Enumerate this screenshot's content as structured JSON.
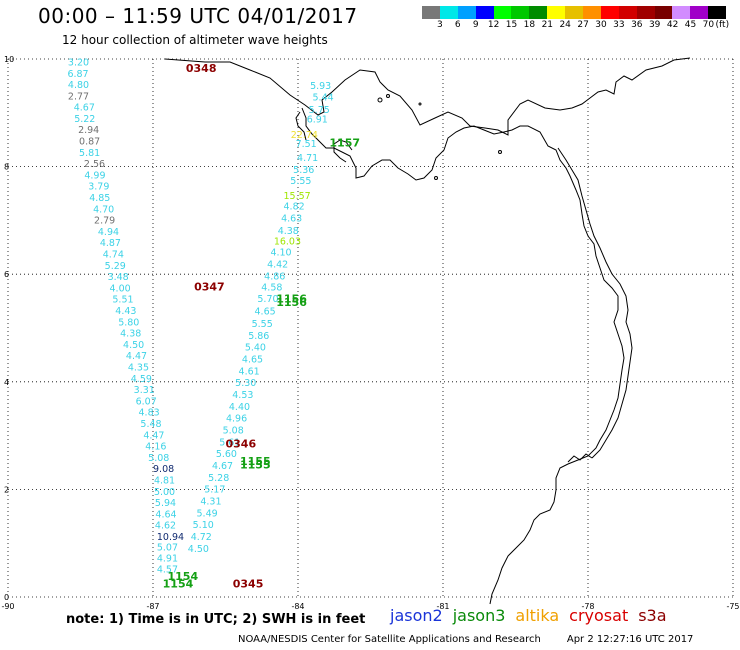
{
  "header": {
    "title": "00:00 – 11:59 UTC 04/01/2017",
    "subtitle": "12 hour collection of altimeter wave heights"
  },
  "legend": {
    "unit": "(ft)",
    "bins": [
      {
        "label": "3",
        "color": "#787878"
      },
      {
        "label": "6",
        "color": "#00e8e8"
      },
      {
        "label": "9",
        "color": "#00a0ff"
      },
      {
        "label": "12",
        "color": "#0000ff"
      },
      {
        "label": "15",
        "color": "#00ff00"
      },
      {
        "label": "18",
        "color": "#00c800"
      },
      {
        "label": "21",
        "color": "#008c00"
      },
      {
        "label": "24",
        "color": "#ffff00"
      },
      {
        "label": "27",
        "color": "#e6c000"
      },
      {
        "label": "30",
        "color": "#ff9000"
      },
      {
        "label": "33",
        "color": "#ff0000"
      },
      {
        "label": "36",
        "color": "#d20000"
      },
      {
        "label": "39",
        "color": "#a00000"
      },
      {
        "label": "42",
        "color": "#780000"
      },
      {
        "label": "45",
        "color": "#d28cff"
      },
      {
        "label": "70",
        "color": "#a000c8"
      },
      {
        "label": "",
        "color": "#000000"
      }
    ]
  },
  "axes": {
    "x_ticks": [
      -90,
      -87,
      -84,
      -81,
      -78,
      -75
    ],
    "y_ticks": [
      0,
      2,
      4,
      6,
      8,
      10
    ],
    "xlim": [
      -90,
      -75
    ],
    "ylim": [
      0,
      10
    ],
    "grid": true,
    "grid_style": "dotted"
  },
  "colors": {
    "cyan": "#3cd2e6",
    "gray": "#707070",
    "green": "#14a014",
    "lightgreen": "#9ee600",
    "darkred": "#8c0000",
    "navy": "#102a70",
    "yellow": "#f0e030",
    "land": "#000000"
  },
  "track_a": {
    "points": [
      {
        "lon": -88.76,
        "lat": 9.88,
        "swh": "3.20",
        "c": "cyan"
      },
      {
        "lon": -88.77,
        "lat": 9.67,
        "swh": "6.87",
        "c": "cyan"
      },
      {
        "lon": -88.76,
        "lat": 9.46,
        "swh": "4.80",
        "c": "cyan"
      },
      {
        "lon": -88.76,
        "lat": 9.25,
        "swh": "2.77",
        "c": "gray"
      },
      {
        "lon": -88.64,
        "lat": 9.04,
        "swh": "4.67",
        "c": "cyan"
      },
      {
        "lon": -88.63,
        "lat": 8.83,
        "swh": "5.22",
        "c": "cyan"
      },
      {
        "lon": -88.55,
        "lat": 8.62,
        "swh": "2.94",
        "c": "gray"
      },
      {
        "lon": -88.53,
        "lat": 8.41,
        "swh": "0.87",
        "c": "gray"
      },
      {
        "lon": -88.53,
        "lat": 8.2,
        "swh": "5.81",
        "c": "cyan"
      },
      {
        "lon": -88.43,
        "lat": 7.99,
        "swh": "2.56",
        "c": "gray"
      },
      {
        "lon": -88.42,
        "lat": 7.78,
        "swh": "4.99",
        "c": "cyan"
      },
      {
        "lon": -88.34,
        "lat": 7.57,
        "swh": "3.79",
        "c": "cyan"
      },
      {
        "lon": -88.32,
        "lat": 7.36,
        "swh": "4.85",
        "c": "cyan"
      },
      {
        "lon": -88.24,
        "lat": 7.15,
        "swh": "4.70",
        "c": "cyan"
      },
      {
        "lon": -88.22,
        "lat": 6.94,
        "swh": "2.79",
        "c": "gray"
      },
      {
        "lon": -88.14,
        "lat": 6.73,
        "swh": "4.94",
        "c": "cyan"
      },
      {
        "lon": -88.1,
        "lat": 6.52,
        "swh": "4.87",
        "c": "cyan"
      },
      {
        "lon": -88.04,
        "lat": 6.31,
        "swh": "4.74",
        "c": "cyan"
      },
      {
        "lon": -88.0,
        "lat": 6.1,
        "swh": "5.29",
        "c": "cyan"
      },
      {
        "lon": -87.94,
        "lat": 5.89,
        "swh": "3.48",
        "c": "cyan"
      },
      {
        "lon": -87.9,
        "lat": 5.68,
        "swh": "4.00",
        "c": "cyan"
      },
      {
        "lon": -87.84,
        "lat": 5.47,
        "swh": "5.51",
        "c": "cyan"
      },
      {
        "lon": -87.78,
        "lat": 5.26,
        "swh": "4.43",
        "c": "cyan"
      },
      {
        "lon": -87.72,
        "lat": 5.05,
        "swh": "5.80",
        "c": "cyan"
      },
      {
        "lon": -87.68,
        "lat": 4.84,
        "swh": "4.38",
        "c": "cyan"
      },
      {
        "lon": -87.62,
        "lat": 4.63,
        "swh": "4.50",
        "c": "cyan"
      },
      {
        "lon": -87.56,
        "lat": 4.42,
        "swh": "4.47",
        "c": "cyan"
      },
      {
        "lon": -87.52,
        "lat": 4.21,
        "swh": "4.35",
        "c": "cyan"
      },
      {
        "lon": -87.46,
        "lat": 4.0,
        "swh": "4.59",
        "c": "cyan"
      },
      {
        "lon": -87.4,
        "lat": 3.79,
        "swh": "3.31",
        "c": "cyan"
      },
      {
        "lon": -87.36,
        "lat": 3.58,
        "swh": "6.07",
        "c": "cyan"
      },
      {
        "lon": -87.3,
        "lat": 3.37,
        "swh": "4.83",
        "c": "cyan"
      },
      {
        "lon": -87.26,
        "lat": 3.16,
        "swh": "5.48",
        "c": "cyan"
      },
      {
        "lon": -87.2,
        "lat": 2.95,
        "swh": "4.47",
        "c": "cyan"
      },
      {
        "lon": -87.16,
        "lat": 2.74,
        "swh": "4.16",
        "c": "cyan"
      },
      {
        "lon": -87.1,
        "lat": 2.53,
        "swh": "5.08",
        "c": "cyan"
      },
      {
        "lon": -87.0,
        "lat": 2.32,
        "swh": "9.08",
        "c": "navy"
      },
      {
        "lon": -86.98,
        "lat": 2.11,
        "swh": "4.81",
        "c": "cyan"
      },
      {
        "lon": -86.98,
        "lat": 1.9,
        "swh": "5.00",
        "c": "cyan"
      },
      {
        "lon": -86.96,
        "lat": 1.69,
        "swh": "5.94",
        "c": "cyan"
      },
      {
        "lon": -86.95,
        "lat": 1.48,
        "swh": "4.64",
        "c": "cyan"
      },
      {
        "lon": -86.96,
        "lat": 1.27,
        "swh": "4.62",
        "c": "cyan"
      },
      {
        "lon": -86.92,
        "lat": 1.06,
        "swh": "10.94",
        "c": "navy"
      },
      {
        "lon": -86.92,
        "lat": 0.86,
        "swh": "5.07",
        "c": "cyan"
      },
      {
        "lon": -86.92,
        "lat": 0.66,
        "swh": "4.91",
        "c": "cyan"
      },
      {
        "lon": -86.92,
        "lat": 0.46,
        "swh": "4.57",
        "c": "cyan"
      }
    ]
  },
  "track_b": {
    "points": [
      {
        "lon": -83.75,
        "lat": 9.44,
        "swh": "5.93",
        "c": "cyan"
      },
      {
        "lon": -83.7,
        "lat": 9.23,
        "swh": "5.44",
        "c": "cyan"
      },
      {
        "lon": -83.78,
        "lat": 9.0,
        "swh": "5.75",
        "c": "cyan"
      },
      {
        "lon": -83.82,
        "lat": 8.82,
        "swh": "6.91",
        "c": "cyan"
      },
      {
        "lon": -84.15,
        "lat": 8.53,
        "swh": "22.74",
        "c": "yellow"
      },
      {
        "lon": -84.05,
        "lat": 8.36,
        "swh": "7.51",
        "c": "cyan"
      },
      {
        "lon": -84.02,
        "lat": 8.1,
        "swh": "4.71",
        "c": "cyan"
      },
      {
        "lon": -84.1,
        "lat": 7.88,
        "swh": "5.36",
        "c": "cyan"
      },
      {
        "lon": -84.16,
        "lat": 7.68,
        "swh": "5.55",
        "c": "cyan"
      },
      {
        "lon": -84.3,
        "lat": 7.4,
        "swh": "15.57",
        "c": "lightgreen"
      },
      {
        "lon": -84.3,
        "lat": 7.2,
        "swh": "4.82",
        "c": "cyan"
      },
      {
        "lon": -84.35,
        "lat": 6.98,
        "swh": "4.63",
        "c": "cyan"
      },
      {
        "lon": -84.42,
        "lat": 6.75,
        "swh": "4.38",
        "c": "cyan"
      },
      {
        "lon": -84.5,
        "lat": 6.55,
        "swh": "16.03",
        "c": "lightgreen"
      },
      {
        "lon": -84.57,
        "lat": 6.35,
        "swh": "4.10",
        "c": "cyan"
      },
      {
        "lon": -84.64,
        "lat": 6.12,
        "swh": "4.42",
        "c": "cyan"
      },
      {
        "lon": -84.7,
        "lat": 5.9,
        "swh": "4.86",
        "c": "cyan"
      },
      {
        "lon": -84.76,
        "lat": 5.7,
        "swh": "4.58",
        "c": "cyan"
      },
      {
        "lon": -84.84,
        "lat": 5.48,
        "swh": "5.70",
        "c": "cyan"
      },
      {
        "lon": -84.9,
        "lat": 5.25,
        "swh": "4.65",
        "c": "cyan"
      },
      {
        "lon": -84.96,
        "lat": 5.02,
        "swh": "5.55",
        "c": "cyan"
      },
      {
        "lon": -85.03,
        "lat": 4.8,
        "swh": "5.86",
        "c": "cyan"
      },
      {
        "lon": -85.1,
        "lat": 4.58,
        "swh": "5.40",
        "c": "cyan"
      },
      {
        "lon": -85.16,
        "lat": 4.36,
        "swh": "4.65",
        "c": "cyan"
      },
      {
        "lon": -85.23,
        "lat": 4.14,
        "swh": "4.61",
        "c": "cyan"
      },
      {
        "lon": -85.3,
        "lat": 3.92,
        "swh": "5.30",
        "c": "cyan"
      },
      {
        "lon": -85.36,
        "lat": 3.7,
        "swh": "4.53",
        "c": "cyan"
      },
      {
        "lon": -85.43,
        "lat": 3.48,
        "swh": "4.40",
        "c": "cyan"
      },
      {
        "lon": -85.49,
        "lat": 3.26,
        "swh": "4.96",
        "c": "cyan"
      },
      {
        "lon": -85.56,
        "lat": 3.04,
        "swh": "5.08",
        "c": "cyan"
      },
      {
        "lon": -85.63,
        "lat": 2.82,
        "swh": "5.61",
        "c": "cyan"
      },
      {
        "lon": -85.7,
        "lat": 2.6,
        "swh": "5.60",
        "c": "cyan"
      },
      {
        "lon": -85.78,
        "lat": 2.38,
        "swh": "4.67",
        "c": "cyan"
      },
      {
        "lon": -85.86,
        "lat": 2.16,
        "swh": "5.28",
        "c": "cyan"
      },
      {
        "lon": -85.94,
        "lat": 1.94,
        "swh": "5.17",
        "c": "cyan"
      },
      {
        "lon": -86.02,
        "lat": 1.72,
        "swh": "4.31",
        "c": "cyan"
      },
      {
        "lon": -86.1,
        "lat": 1.5,
        "swh": "5.49",
        "c": "cyan"
      },
      {
        "lon": -86.18,
        "lat": 1.28,
        "swh": "5.10",
        "c": "cyan"
      },
      {
        "lon": -86.22,
        "lat": 1.06,
        "swh": "4.72",
        "c": "cyan"
      },
      {
        "lon": -86.28,
        "lat": 0.84,
        "swh": "4.50",
        "c": "cyan"
      }
    ]
  },
  "time_labels": [
    {
      "lon": -86.32,
      "lat": 9.76,
      "text": "0348",
      "c": "darkred"
    },
    {
      "lon": -86.15,
      "lat": 5.7,
      "text": "0347",
      "c": "darkred"
    },
    {
      "lon": -85.5,
      "lat": 2.78,
      "text": "0346",
      "c": "darkred"
    },
    {
      "lon": -85.35,
      "lat": 0.18,
      "text": "0345",
      "c": "darkred"
    },
    {
      "lon": -83.35,
      "lat": 8.37,
      "text": "1157",
      "c": "green"
    },
    {
      "lon": -84.45,
      "lat": 5.47,
      "text": "1156",
      "c": "green"
    },
    {
      "lon": -84.45,
      "lat": 5.41,
      "text": "1156",
      "c": "green"
    },
    {
      "lon": -85.2,
      "lat": 2.45,
      "text": "1155",
      "c": "green"
    },
    {
      "lon": -85.2,
      "lat": 2.39,
      "text": "1155",
      "c": "green"
    },
    {
      "lon": -86.7,
      "lat": 0.32,
      "text": "1154",
      "c": "green"
    },
    {
      "lon": -86.8,
      "lat": 0.18,
      "text": "1154",
      "c": "green"
    }
  ],
  "note": "note: 1) Time is in UTC; 2) SWH is in feet",
  "satellites": [
    {
      "name": "jason2",
      "color": "#1a34d8"
    },
    {
      "name": "jason3",
      "color": "#0a8a0a"
    },
    {
      "name": "altika",
      "color": "#f0a000"
    },
    {
      "name": "cryosat",
      "color": "#d80000"
    },
    {
      "name": "s3a",
      "color": "#8c0000"
    }
  ],
  "footer": {
    "credit": "NOAA/NESDIS Center for Satellite Applications and Research",
    "timestamp": "Apr  2 12:27:16 UTC 2017"
  }
}
